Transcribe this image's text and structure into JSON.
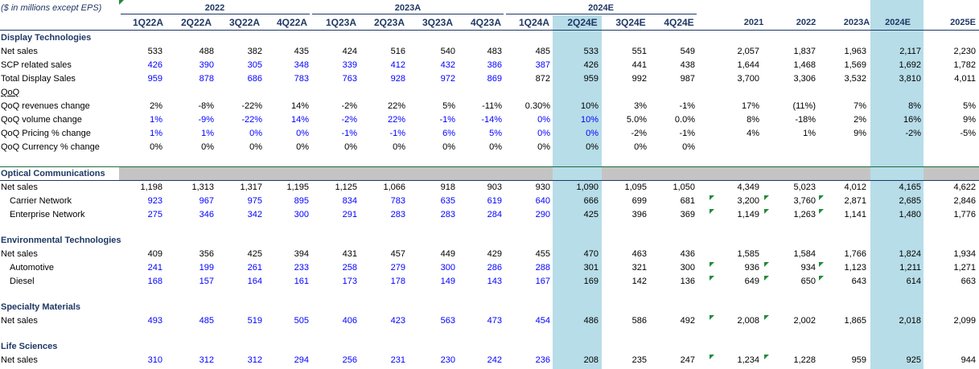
{
  "header_note": "($ in millions except EPS)",
  "year_groups": [
    "2022",
    "2023A",
    "2024E"
  ],
  "columns": [
    "1Q22A",
    "2Q22A",
    "3Q22A",
    "4Q22A",
    "1Q23A",
    "2Q23A",
    "3Q23A",
    "4Q23A",
    "1Q24A",
    "2Q24E",
    "3Q24E",
    "4Q24E",
    "2021",
    "2022",
    "2023A",
    "2024E",
    "2025E"
  ],
  "colors": {
    "header": "#1f3864",
    "input_blue": "#0000ff",
    "highlight": "#b7dde8",
    "band_gray": "#c4c4c4",
    "flag_green": "#1e8c3a"
  },
  "sections": [
    {
      "title": "Display Technologies"
    },
    {
      "title": "Optical Communications"
    },
    {
      "title": "Environmental Technologies"
    },
    {
      "title": "Specialty Materials"
    },
    {
      "title": "Life Sciences"
    }
  ],
  "rows": [
    {
      "label": "Net sales",
      "values": [
        "533",
        "488",
        "382",
        "435",
        "424",
        "516",
        "540",
        "483",
        "485",
        "533",
        "551",
        "549",
        "2,057",
        "1,837",
        "1,963",
        "2,117",
        "2,230"
      ]
    },
    {
      "label": "SCP related sales",
      "values": [
        "426",
        "390",
        "305",
        "348",
        "339",
        "412",
        "432",
        "386",
        "387",
        "426",
        "441",
        "438",
        "1,644",
        "1,468",
        "1,569",
        "1,692",
        "1,782"
      ]
    },
    {
      "label": "Total Display Sales",
      "values": [
        "959",
        "878",
        "686",
        "783",
        "763",
        "928",
        "972",
        "869",
        "872",
        "959",
        "992",
        "987",
        "3,700",
        "3,306",
        "3,532",
        "3,810",
        "4,011"
      ]
    },
    {
      "label": "QoQ",
      "values": []
    },
    {
      "label": "QoQ revenues change",
      "values": [
        "2%",
        "-8%",
        "-22%",
        "14%",
        "-2%",
        "22%",
        "5%",
        "-11%",
        "0.30%",
        "10%",
        "3%",
        "-1%",
        "17%",
        "(11%)",
        "7%",
        "8%",
        "5%"
      ]
    },
    {
      "label": "QoQ volume change",
      "values": [
        "1%",
        "-9%",
        "-22%",
        "14%",
        "-2%",
        "22%",
        "-1%",
        "-14%",
        "0%",
        "10%",
        "5.0%",
        "0.0%",
        "8%",
        "-18%",
        "2%",
        "16%",
        "9%"
      ]
    },
    {
      "label": "QoQ Pricing % change",
      "values": [
        "1%",
        "1%",
        "0%",
        "0%",
        "-1%",
        "-1%",
        "6%",
        "5%",
        "0%",
        "0%",
        "-2%",
        "-1%",
        "4%",
        "1%",
        "9%",
        "-2%",
        "-5%"
      ]
    },
    {
      "label": "QoQ Currency % change",
      "values": [
        "0%",
        "0%",
        "0%",
        "0%",
        "0%",
        "0%",
        "0%",
        "0%",
        "0%",
        "0%",
        "0%",
        "0%",
        "",
        "",
        "",
        "",
        ""
      ]
    },
    {
      "label": "Net sales",
      "values": [
        "1,198",
        "1,313",
        "1,317",
        "1,195",
        "1,125",
        "1,066",
        "918",
        "903",
        "930",
        "1,090",
        "1,095",
        "1,050",
        "4,349",
        "5,023",
        "4,012",
        "4,165",
        "4,622"
      ]
    },
    {
      "label": "Carrier Network",
      "values": [
        "923",
        "967",
        "975",
        "895",
        "834",
        "783",
        "635",
        "619",
        "640",
        "666",
        "699",
        "681",
        "3,200",
        "3,760",
        "2,871",
        "2,685",
        "2,846"
      ]
    },
    {
      "label": "Enterprise Network",
      "values": [
        "275",
        "346",
        "342",
        "300",
        "291",
        "283",
        "283",
        "284",
        "290",
        "425",
        "396",
        "369",
        "1,149",
        "1,263",
        "1,141",
        "1,480",
        "1,776"
      ]
    },
    {
      "label": "Net sales",
      "values": [
        "409",
        "356",
        "425",
        "394",
        "431",
        "457",
        "449",
        "429",
        "455",
        "470",
        "463",
        "436",
        "1,585",
        "1,584",
        "1,766",
        "1,824",
        "1,934"
      ]
    },
    {
      "label": "Automotive",
      "values": [
        "241",
        "199",
        "261",
        "233",
        "258",
        "279",
        "300",
        "286",
        "288",
        "301",
        "321",
        "300",
        "936",
        "934",
        "1,123",
        "1,211",
        "1,271"
      ]
    },
    {
      "label": "Diesel",
      "values": [
        "168",
        "157",
        "164",
        "161",
        "173",
        "178",
        "149",
        "143",
        "167",
        "169",
        "142",
        "136",
        "649",
        "650",
        "643",
        "614",
        "663"
      ]
    },
    {
      "label": "Net sales",
      "values": [
        "493",
        "485",
        "519",
        "505",
        "406",
        "423",
        "563",
        "473",
        "454",
        "486",
        "586",
        "492",
        "2,008",
        "2,002",
        "1,865",
        "2,018",
        "2,099"
      ]
    },
    {
      "label": "Net sales",
      "values": [
        "310",
        "312",
        "312",
        "294",
        "256",
        "231",
        "230",
        "242",
        "236",
        "208",
        "235",
        "247",
        "1,234",
        "1,228",
        "959",
        "925",
        "944"
      ]
    }
  ]
}
